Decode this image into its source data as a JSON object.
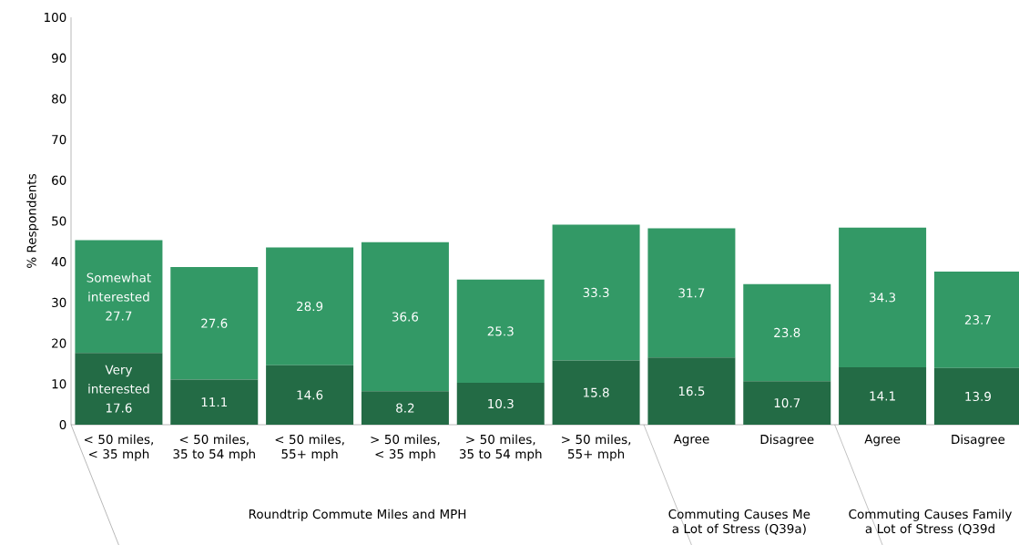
{
  "chart_data": {
    "type": "bar",
    "stacked": true,
    "ylabel": "% Respondents",
    "categories": [
      "< 50 miles, < 35 mph",
      "< 50 miles, 35 to 54 mph",
      "< 50 miles, 55+ mph",
      "> 50 miles, < 35 mph",
      "> 50 miles, 35 to 54 mph",
      "> 50 miles, 55+ mph",
      "Agree",
      "Disagree",
      "Agree",
      "Disagree"
    ],
    "series": [
      {
        "name": "Very interested",
        "color": "#236b45",
        "values": [
          17.6,
          11.1,
          14.6,
          8.2,
          10.3,
          15.8,
          16.5,
          10.7,
          14.1,
          13.9
        ]
      },
      {
        "name": "Somewhat interested",
        "color": "#339966",
        "values": [
          27.7,
          27.6,
          28.9,
          36.6,
          25.3,
          33.3,
          31.7,
          23.8,
          34.3,
          23.7
        ]
      }
    ],
    "ylim": [
      0,
      100
    ],
    "yticks": [
      0,
      10,
      20,
      30,
      40,
      50,
      60,
      70,
      80,
      90,
      100
    ],
    "data_labels": true,
    "legend": false,
    "grid": false,
    "annotations": [
      "Roundtrip Commute Miles and MPH",
      "Commuting Causes Me a Lot of Stress (Q39a)",
      "Commuting Causes Family a Lot of Stress (Q39d"
    ]
  }
}
